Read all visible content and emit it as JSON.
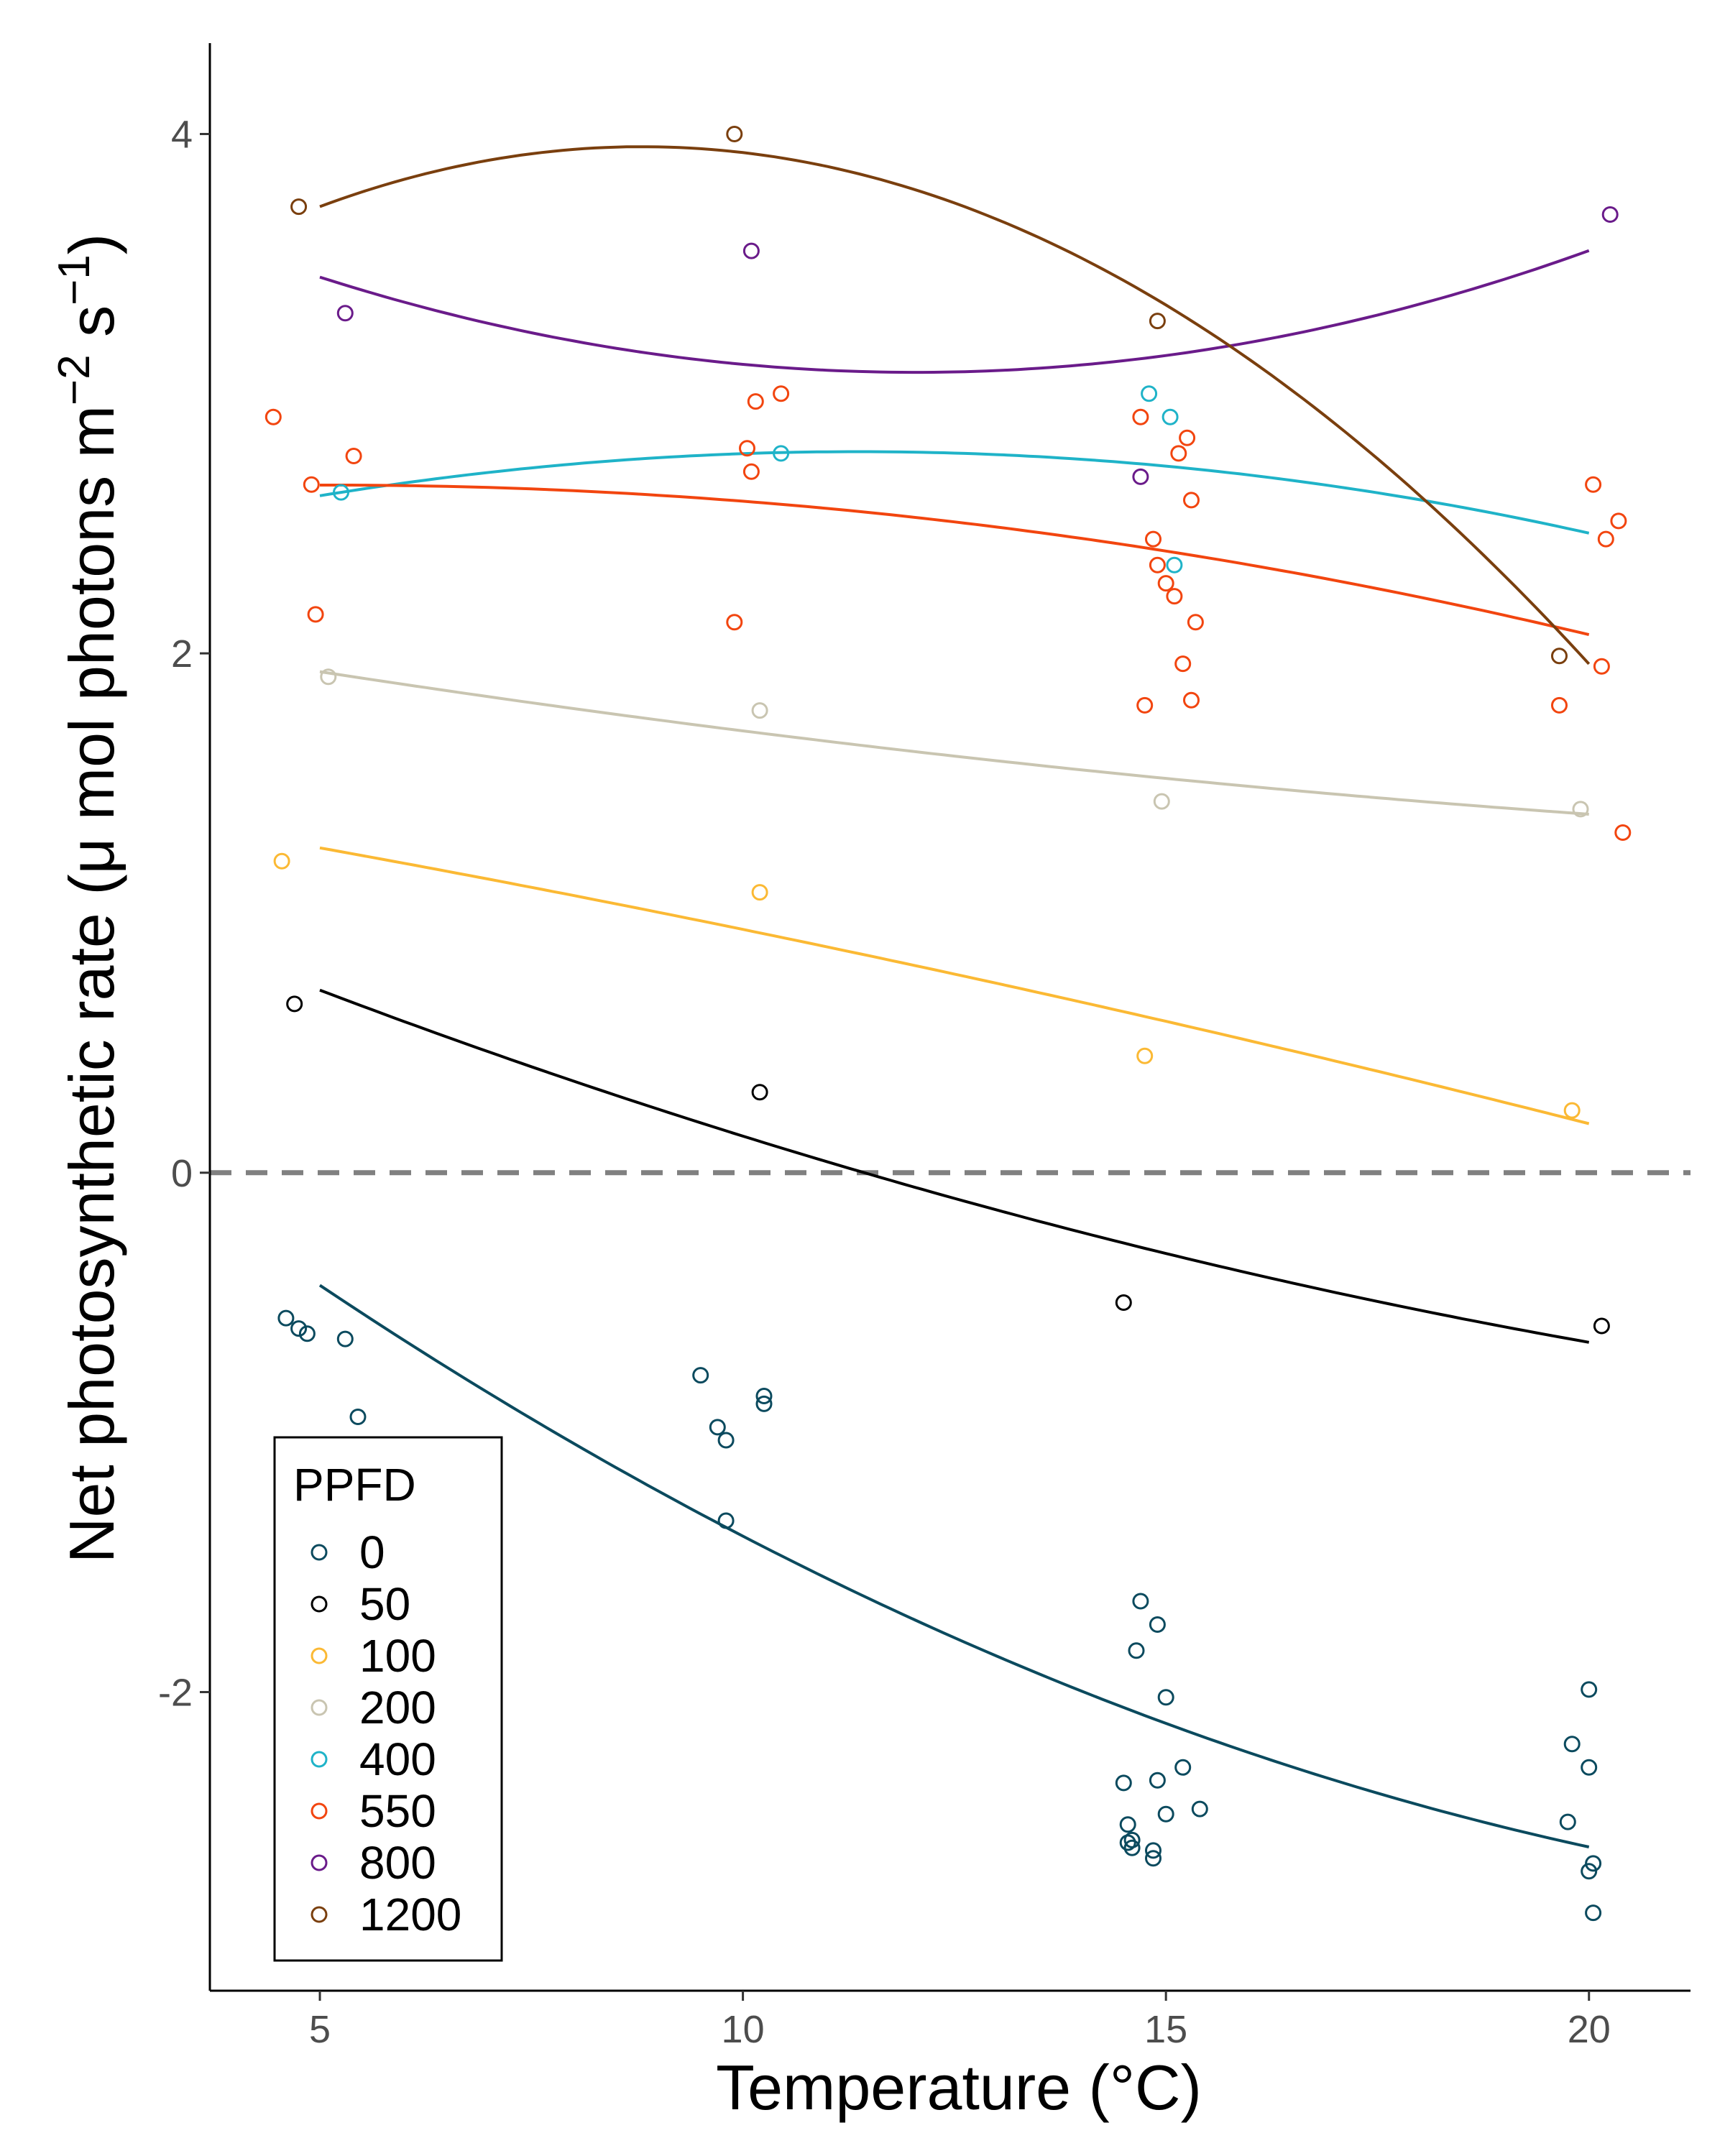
{
  "chart_data": {
    "type": "scatter",
    "xlabel": "Temperature (°C)",
    "ylabel_main": "Net photosynthetic rate (μ mol photons m",
    "ylabel_sup1": "−2",
    "ylabel_mid": " s",
    "ylabel_sup2": "−1",
    "ylabel_end": ")",
    "xlim": [
      3.7,
      21.2
    ],
    "ylim": [
      -3.15,
      4.35
    ],
    "x_ticks": [
      5,
      10,
      15,
      20
    ],
    "x_tick_labels": [
      "5",
      "10",
      "15",
      "20"
    ],
    "y_ticks": [
      -2,
      0,
      2,
      4
    ],
    "y_tick_labels": [
      "-2",
      "0",
      "2",
      "4"
    ],
    "reference_line": {
      "y": 0,
      "style": "dashed",
      "color": "#808080"
    },
    "grid": false,
    "legend": {
      "title": "PPFD",
      "position": "bottom-left"
    },
    "series": [
      {
        "name": "0",
        "color": "#0b4a5e",
        "points": [
          [
            4.6,
            -0.56
          ],
          [
            4.75,
            -0.6
          ],
          [
            4.85,
            -0.62
          ],
          [
            5.3,
            -0.64
          ],
          [
            5.45,
            -0.94
          ],
          [
            9.5,
            -0.78
          ],
          [
            9.7,
            -0.98
          ],
          [
            9.8,
            -1.03
          ],
          [
            10.25,
            -0.86
          ],
          [
            10.25,
            -0.89
          ],
          [
            9.8,
            -1.34
          ],
          [
            14.5,
            -2.35
          ],
          [
            14.55,
            -2.51
          ],
          [
            14.55,
            -2.58
          ],
          [
            14.6,
            -2.6
          ],
          [
            14.6,
            -2.57
          ],
          [
            14.65,
            -1.84
          ],
          [
            14.7,
            -1.65
          ],
          [
            14.85,
            -2.61
          ],
          [
            14.85,
            -2.64
          ],
          [
            14.9,
            -2.34
          ],
          [
            14.9,
            -1.74
          ],
          [
            15.0,
            -2.47
          ],
          [
            15.0,
            -2.02
          ],
          [
            15.2,
            -2.29
          ],
          [
            15.4,
            -2.45
          ],
          [
            19.75,
            -2.5
          ],
          [
            19.8,
            -2.2
          ],
          [
            20.0,
            -1.99
          ],
          [
            20.0,
            -2.29
          ],
          [
            20.0,
            -2.69
          ],
          [
            20.05,
            -2.66
          ],
          [
            20.05,
            -2.85
          ]
        ],
        "fit": [
          [
            5,
            -0.43
          ],
          [
            10,
            -1.41
          ],
          [
            15,
            -2.11
          ],
          [
            20,
            -2.6
          ]
        ]
      },
      {
        "name": "50",
        "color": "#000000",
        "points": [
          [
            4.7,
            0.65
          ],
          [
            10.2,
            0.31
          ],
          [
            14.5,
            -0.5
          ],
          [
            20.15,
            -0.59
          ]
        ],
        "fit": [
          [
            5,
            0.7
          ],
          [
            10,
            0.15
          ],
          [
            15,
            -0.32
          ],
          [
            20,
            -0.65
          ]
        ]
      },
      {
        "name": "100",
        "color": "#fbb934",
        "points": [
          [
            4.55,
            1.2
          ],
          [
            10.2,
            1.08
          ],
          [
            14.75,
            0.45
          ],
          [
            19.8,
            0.24
          ]
        ],
        "fit": [
          [
            5,
            1.25
          ],
          [
            10,
            0.94
          ],
          [
            15,
            0.58
          ],
          [
            20,
            0.19
          ]
        ]
      },
      {
        "name": "200",
        "color": "#c9c5b1",
        "points": [
          [
            5.1,
            1.91
          ],
          [
            10.2,
            1.78
          ],
          [
            14.95,
            1.43
          ],
          [
            19.9,
            1.4
          ]
        ],
        "fit": [
          [
            5,
            1.93
          ],
          [
            10,
            1.7
          ],
          [
            15,
            1.52
          ],
          [
            20,
            1.38
          ]
        ]
      },
      {
        "name": "400",
        "color": "#1fb3c8",
        "points": [
          [
            5.25,
            2.62
          ],
          [
            10.45,
            2.77
          ],
          [
            14.8,
            3.0
          ],
          [
            15.05,
            2.91
          ],
          [
            15.1,
            2.34
          ]
        ],
        "fit": [
          [
            5,
            2.61
          ],
          [
            10,
            2.76
          ],
          [
            15,
            2.73
          ],
          [
            20,
            2.46
          ]
        ]
      },
      {
        "name": "550",
        "color": "#f2450f",
        "points": [
          [
            4.45,
            2.91
          ],
          [
            4.9,
            2.65
          ],
          [
            4.95,
            2.15
          ],
          [
            5.4,
            2.76
          ],
          [
            9.9,
            2.12
          ],
          [
            10.05,
            2.79
          ],
          [
            10.1,
            2.7
          ],
          [
            10.15,
            2.97
          ],
          [
            10.45,
            3.0
          ],
          [
            14.7,
            2.91
          ],
          [
            14.75,
            1.8
          ],
          [
            14.85,
            2.44
          ],
          [
            14.9,
            2.34
          ],
          [
            15.0,
            2.27
          ],
          [
            15.1,
            2.22
          ],
          [
            15.15,
            2.77
          ],
          [
            15.2,
            1.96
          ],
          [
            15.25,
            2.83
          ],
          [
            15.3,
            2.59
          ],
          [
            15.3,
            1.82
          ],
          [
            15.35,
            2.12
          ],
          [
            19.65,
            1.8
          ],
          [
            20.05,
            2.65
          ],
          [
            20.15,
            1.95
          ],
          [
            20.2,
            2.44
          ],
          [
            20.35,
            2.51
          ],
          [
            20.4,
            1.31
          ]
        ],
        "fit": [
          [
            5,
            2.65
          ],
          [
            10,
            2.58
          ],
          [
            15,
            2.4
          ],
          [
            20,
            2.07
          ]
        ]
      },
      {
        "name": "800",
        "color": "#6a1b8a",
        "points": [
          [
            5.3,
            3.31
          ],
          [
            10.1,
            3.55
          ],
          [
            14.7,
            2.68
          ],
          [
            20.25,
            3.69
          ]
        ],
        "fit": [
          [
            5,
            3.45
          ],
          [
            10,
            3.11
          ],
          [
            15,
            3.15
          ],
          [
            20,
            3.55
          ]
        ]
      },
      {
        "name": "1200",
        "color": "#7a3f0e",
        "points": [
          [
            4.75,
            3.72
          ],
          [
            9.9,
            4.0
          ],
          [
            14.9,
            3.28
          ],
          [
            19.65,
            1.99
          ]
        ],
        "fit": [
          [
            5,
            3.72
          ],
          [
            10,
            3.93
          ],
          [
            15,
            3.34
          ],
          [
            20,
            1.96
          ]
        ]
      }
    ]
  }
}
